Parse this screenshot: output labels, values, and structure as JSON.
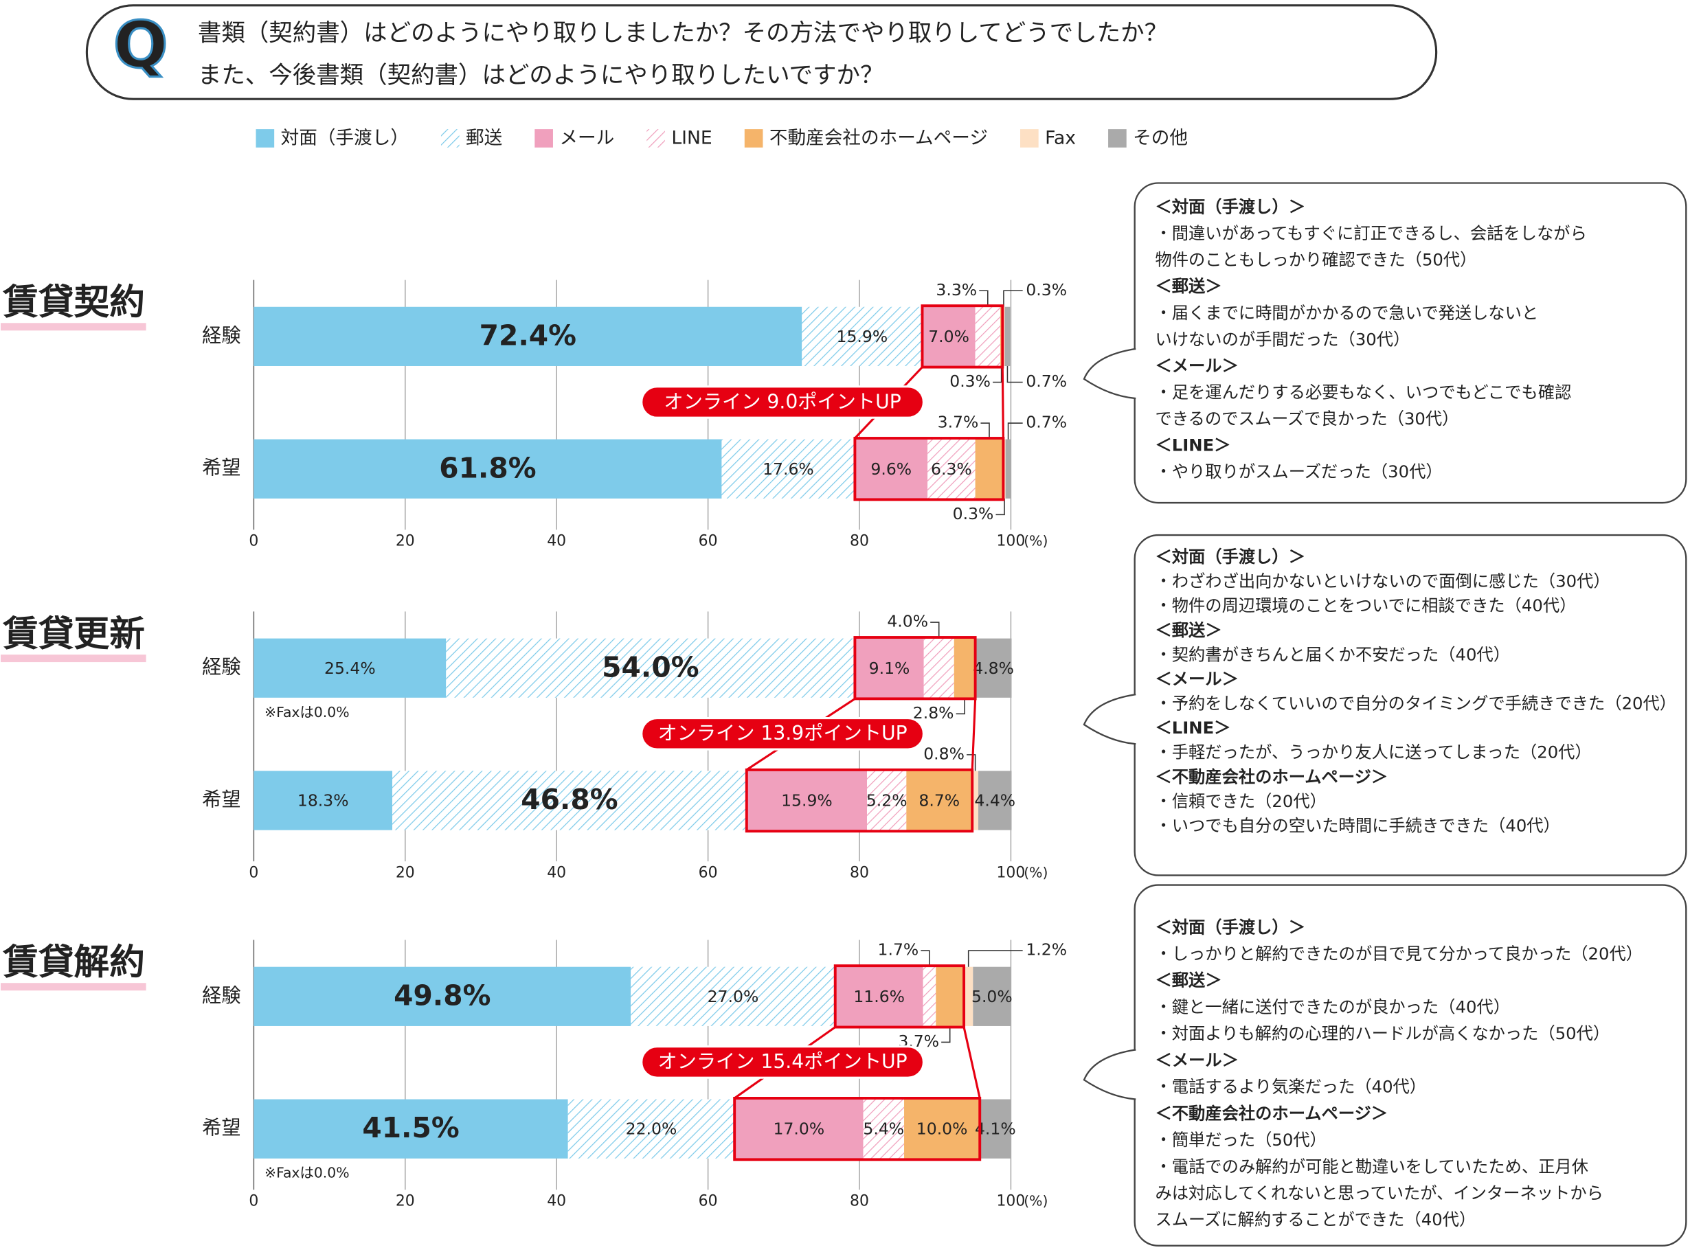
{
  "question": {
    "label": "Q",
    "lines": [
      "書類（契約書）はどのようにやり取りしましたか？その方法でやり取りしてどうでしたか？",
      "また、今後書類（契約書）はどのようにやり取りしたいですか？"
    ]
  },
  "chart_data": [
    {
      "type": "bar",
      "title": "賃貸契約",
      "categories": [
        "経験",
        "希望"
      ],
      "xlim": [
        0,
        100
      ],
      "xticks": [
        0,
        20,
        40,
        60,
        80,
        100
      ],
      "xlabel": "(%)",
      "grid": true,
      "series": [
        {
          "name": "対面（手渡し）",
          "color": "#7ecbea",
          "values": [
            72.4,
            61.8
          ],
          "value_labels": [
            "72.4%",
            "61.8%"
          ]
        },
        {
          "name": "郵送",
          "color": "#7ecbea",
          "hatch": true,
          "values": [
            15.9,
            17.6
          ],
          "value_labels": [
            "15.9%",
            "17.6%"
          ]
        },
        {
          "name": "メール",
          "color": "#f0a0bd",
          "values": [
            7.0,
            9.6
          ],
          "value_labels": [
            "7.0%",
            "9.6%"
          ]
        },
        {
          "name": "LINE",
          "color": "#f0a0bd",
          "hatch": true,
          "values": [
            3.3,
            6.3
          ],
          "value_labels": [
            "3.3%",
            "6.3%"
          ]
        },
        {
          "name": "不動産会社のホームページ",
          "color": "#f5b46a",
          "values": [
            0.3,
            3.7
          ],
          "value_labels": [
            "0.3%",
            "3.7%"
          ]
        },
        {
          "name": "Fax",
          "color": "#fde0c4",
          "values": [
            0.3,
            0.3
          ],
          "value_labels": [
            "0.3%",
            "0.3%"
          ]
        },
        {
          "name": "その他",
          "color": "#aaaaaa",
          "values": [
            0.7,
            0.7
          ],
          "value_labels": [
            "0.7%",
            "0.7%"
          ]
        }
      ],
      "annotation": "オンライン 9.0ポイントUP",
      "notes": [
        null,
        null
      ]
    },
    {
      "type": "bar",
      "title": "賃貸更新",
      "categories": [
        "経験",
        "希望"
      ],
      "xlim": [
        0,
        100
      ],
      "xticks": [
        0,
        20,
        40,
        60,
        80,
        100
      ],
      "xlabel": "(%)",
      "grid": true,
      "series": [
        {
          "name": "対面（手渡し）",
          "color": "#7ecbea",
          "values": [
            25.4,
            18.3
          ],
          "value_labels": [
            "25.4%",
            "18.3%"
          ]
        },
        {
          "name": "郵送",
          "color": "#7ecbea",
          "hatch": true,
          "values": [
            54.0,
            46.8
          ],
          "value_labels": [
            "54.0%",
            "46.8%"
          ]
        },
        {
          "name": "メール",
          "color": "#f0a0bd",
          "values": [
            9.1,
            15.9
          ],
          "value_labels": [
            "9.1%",
            "15.9%"
          ]
        },
        {
          "name": "LINE",
          "color": "#f0a0bd",
          "hatch": true,
          "values": [
            4.0,
            5.2
          ],
          "value_labels": [
            "4.0%",
            "5.2%"
          ]
        },
        {
          "name": "不動産会社のホームページ",
          "color": "#f5b46a",
          "values": [
            2.8,
            8.7
          ],
          "value_labels": [
            "2.8%",
            "8.7%"
          ]
        },
        {
          "name": "Fax",
          "color": "#fde0c4",
          "values": [
            0.0,
            0.8
          ],
          "value_labels": [
            null,
            "0.8%"
          ]
        },
        {
          "name": "その他",
          "color": "#aaaaaa",
          "values": [
            4.8,
            4.4
          ],
          "value_labels": [
            "4.8%",
            "4.4%"
          ]
        }
      ],
      "annotation": "オンライン 13.9ポイントUP",
      "notes": [
        "※Faxは0.0%",
        null
      ]
    },
    {
      "type": "bar",
      "title": "賃貸解約",
      "categories": [
        "経験",
        "希望"
      ],
      "xlim": [
        0,
        100
      ],
      "xticks": [
        0,
        20,
        40,
        60,
        80,
        100
      ],
      "xlabel": "(%)",
      "grid": true,
      "series": [
        {
          "name": "対面（手渡し）",
          "color": "#7ecbea",
          "values": [
            49.8,
            41.5
          ],
          "value_labels": [
            "49.8%",
            "41.5%"
          ]
        },
        {
          "name": "郵送",
          "color": "#7ecbea",
          "hatch": true,
          "values": [
            27.0,
            22.0
          ],
          "value_labels": [
            "27.0%",
            "22.0%"
          ]
        },
        {
          "name": "メール",
          "color": "#f0a0bd",
          "values": [
            11.6,
            17.0
          ],
          "value_labels": [
            "11.6%",
            "17.0%"
          ]
        },
        {
          "name": "LINE",
          "color": "#f0a0bd",
          "hatch": true,
          "values": [
            1.7,
            5.4
          ],
          "value_labels": [
            "1.7%",
            "5.4%"
          ]
        },
        {
          "name": "不動産会社のホームページ",
          "color": "#f5b46a",
          "values": [
            3.7,
            10.0
          ],
          "value_labels": [
            "3.7%",
            "10.0%"
          ]
        },
        {
          "name": "Fax",
          "color": "#fde0c4",
          "values": [
            1.2,
            0.0
          ],
          "value_labels": [
            "1.2%",
            null
          ]
        },
        {
          "name": "その他",
          "color": "#aaaaaa",
          "values": [
            5.0,
            4.1
          ],
          "value_labels": [
            "5.0%",
            "4.1%"
          ]
        }
      ],
      "annotation": "オンライン 15.4ポイントUP",
      "notes": [
        null,
        "※Faxは0.0%"
      ]
    }
  ],
  "comments": [
    {
      "sections": [
        {
          "heading": "＜対面（手渡し）＞",
          "lines": [
            "・間違いがあってもすぐに訂正できるし、会話をしながら",
            "物件のこともしっかり確認できた（50代）"
          ]
        },
        {
          "heading": "＜郵送＞",
          "lines": [
            "・届くまでに時間がかかるので急いで発送しないと",
            "いけないのが手間だった（30代）"
          ]
        },
        {
          "heading": "＜メール＞",
          "lines": [
            "・足を運んだりする必要もなく、いつでもどこでも確認",
            "できるのでスムーズで良かった（30代）"
          ]
        },
        {
          "heading": "＜LINE＞",
          "lines": [
            "・やり取りがスムーズだった（30代）"
          ]
        }
      ]
    },
    {
      "sections": [
        {
          "heading": "＜対面（手渡し）＞",
          "lines": [
            "・わざわざ出向かないといけないので面倒に感じた（30代）",
            "・物件の周辺環境のことをついでに相談できた（40代）"
          ]
        },
        {
          "heading": "＜郵送＞",
          "lines": [
            "・契約書がきちんと届くか不安だった（40代）"
          ]
        },
        {
          "heading": "＜メール＞",
          "lines": [
            "・予約をしなくていいので自分のタイミングで手続きできた（20代）"
          ]
        },
        {
          "heading": "＜LINE＞",
          "lines": [
            "・手軽だったが、うっかり友人に送ってしまった（20代）"
          ]
        },
        {
          "heading": "＜不動産会社のホームページ＞",
          "lines": [
            "・信頼できた（20代）",
            "・いつでも自分の空いた時間に手続きできた（40代）"
          ]
        }
      ]
    },
    {
      "sections": [
        {
          "heading": "＜対面（手渡し）＞",
          "lines": [
            "・しっかりと解約できたのが目で見て分かって良かった（20代）"
          ]
        },
        {
          "heading": "＜郵送＞",
          "lines": [
            "・鍵と一緒に送付できたのが良かった（40代）",
            "・対面よりも解約の心理的ハードルが高くなかった（50代）"
          ]
        },
        {
          "heading": "＜メール＞",
          "lines": [
            "・電話するより気楽だった（40代）"
          ]
        },
        {
          "heading": "＜不動産会社のホームページ＞",
          "lines": [
            "・簡単だった（50代）",
            "・電話でのみ解約が可能と勘違いをしていたため、正月休",
            "みは対応してくれないと思っていたが、インターネットから",
            "スムーズに解約することができた（40代）"
          ]
        }
      ]
    }
  ]
}
